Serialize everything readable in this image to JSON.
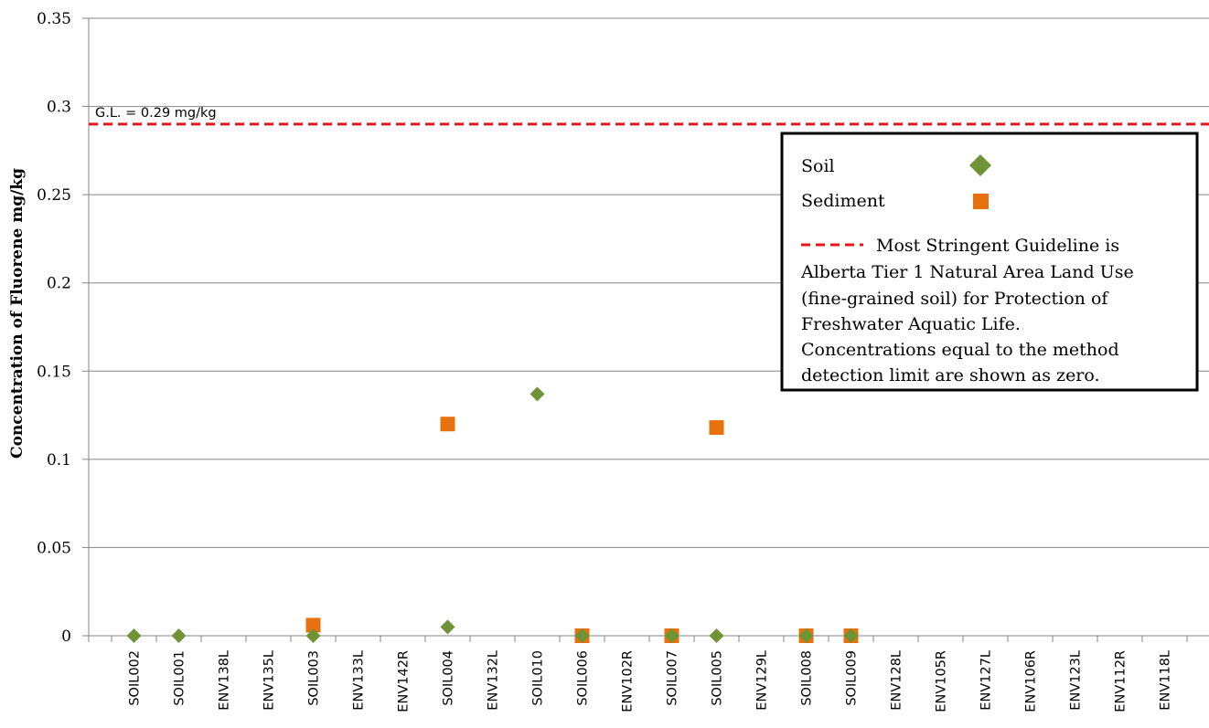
{
  "chart_data": {
    "type": "scatter",
    "ylabel": "Concentration of Fluorene mg/kg",
    "ylim": [
      0,
      0.35
    ],
    "yticks": [
      "0",
      "0.05",
      "0.1",
      "0.15",
      "0.2",
      "0.25",
      "0.3",
      "0.35"
    ],
    "grid": "horizontal",
    "legend_position": "right",
    "categories": [
      "SOIL002",
      "SOIL001",
      "ENV138L",
      "ENV135L",
      "SOIL003",
      "ENV133L",
      "ENV142R",
      "SOIL004",
      "ENV132L",
      "SOIL010",
      "SOIL006",
      "ENV102R",
      "SOIL007",
      "SOIL005",
      "ENV129L",
      "SOIL008",
      "SOIL009",
      "ENV128L",
      "ENV105R",
      "ENV127L",
      "ENV106R",
      "ENV123L",
      "ENV112R",
      "ENV118L"
    ],
    "series": [
      {
        "name": "Soil",
        "marker": "diamond",
        "color": "#6f9438",
        "values": [
          0,
          0,
          null,
          null,
          0,
          null,
          null,
          0.005,
          null,
          0.137,
          0,
          null,
          0,
          0,
          null,
          0,
          0,
          null,
          null,
          null,
          null,
          null,
          null,
          null
        ]
      },
      {
        "name": "Sediment",
        "marker": "square",
        "color": "#e8710f",
        "values": [
          null,
          null,
          null,
          null,
          0.006,
          null,
          null,
          0.12,
          null,
          null,
          0,
          null,
          0,
          0.118,
          null,
          0,
          0,
          null,
          null,
          null,
          null,
          null,
          null,
          null
        ]
      },
      {
        "name": "Most Stringent Guideline is Alberta Tier 1 Natural Area Land Use (fine-grained soil) for Protection of Freshwater Aquatic Life. Concentrations equal to the method detection limit are shown as zero.",
        "lines": [
          "Most Stringent Guideline is",
          "Alberta Tier 1 Natural Area Land Use",
          "(fine-grained soil) for Protection of",
          "Freshwater Aquatic Life.",
          "Concentrations equal to the method",
          "detection limit are shown as zero."
        ],
        "type": "reference-line",
        "style": "dashed",
        "color": "#e8161b",
        "value": 0.29
      }
    ],
    "annotations": [
      {
        "text": "G.L. = 0.29 mg/kg"
      }
    ]
  }
}
